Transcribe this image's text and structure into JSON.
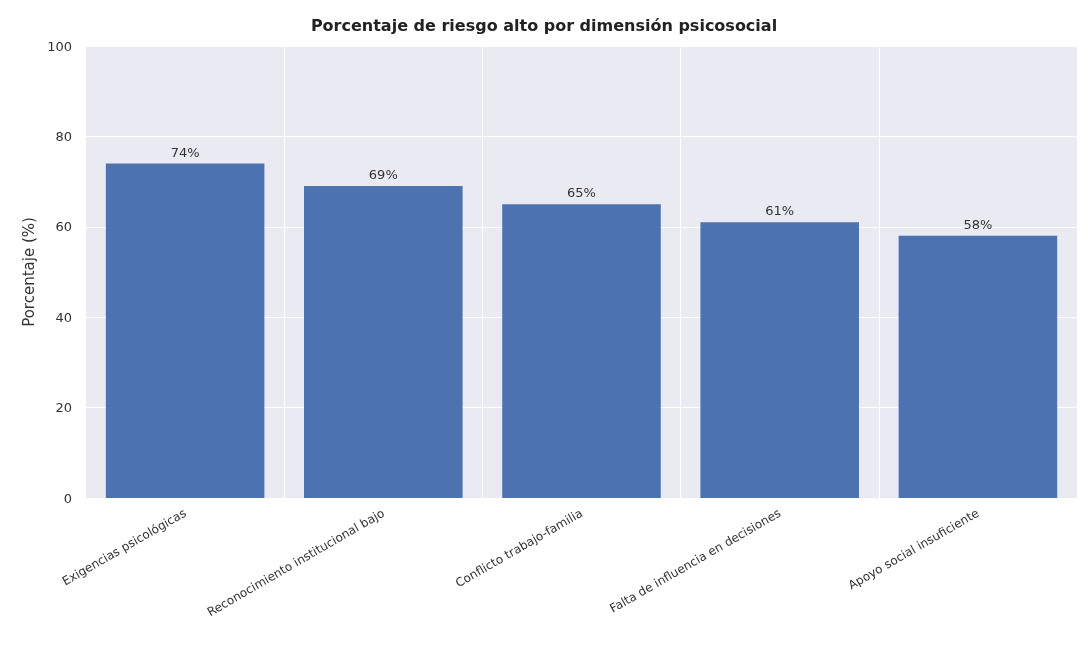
{
  "chart_data": {
    "type": "bar",
    "title": "Porcentaje de riesgo alto por dimensión psicosocial",
    "ylabel": "Porcentaje (%)",
    "categories": [
      "Exigencias psicológicas",
      "Reconocimiento institucional bajo",
      "Conflicto trabajo-familia",
      "Falta de influencia en decisiones",
      "Apoyo social insuficiente"
    ],
    "values": [
      74,
      69,
      65,
      61,
      58
    ],
    "value_labels": [
      "74%",
      "69%",
      "65%",
      "61%",
      "58%"
    ],
    "color": "#4c72b0",
    "ylim": [
      0,
      100
    ],
    "yticks": [
      0,
      20,
      40,
      60,
      80,
      100
    ],
    "grid": true
  }
}
